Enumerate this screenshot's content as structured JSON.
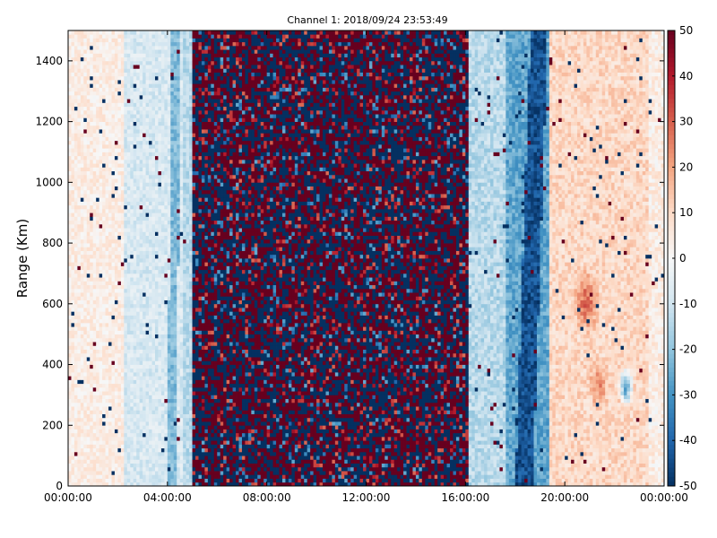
{
  "chart_data": {
    "type": "heatmap",
    "title": "Channel 1: 2018/09/24 23:53:49",
    "xlabel": "",
    "ylabel": "Range (Km)",
    "x_ticks": [
      "00:00:00",
      "04:00:00",
      "08:00:00",
      "12:00:00",
      "16:00:00",
      "20:00:00",
      "00:00:00"
    ],
    "x_range_hours": [
      0,
      24
    ],
    "y_ticks": [
      0,
      200,
      400,
      600,
      800,
      1000,
      1200,
      1400
    ],
    "ylim": [
      0,
      1500
    ],
    "colorbar": {
      "colormap": "RdBu_r",
      "range": [
        -50,
        50
      ],
      "ticks": [
        50,
        40,
        30,
        20,
        10,
        0,
        -10,
        -20,
        -30,
        -40,
        -50
      ],
      "low_color": "#053061",
      "mid_color": "#f7f7f7",
      "high_color": "#67001f"
    },
    "regions": [
      {
        "x_hours": [
          0,
          2.2
        ],
        "character": "near-zero, slightly positive (light pink/white), sparse dark speckles"
      },
      {
        "x_hours": [
          2.2,
          5
        ],
        "character": "slightly negative (light blue), darker blue band near 04:00"
      },
      {
        "x_hours": [
          5,
          16.1
        ],
        "character": "saturated noise alternating +50 / -50 (dark red and dark blue)"
      },
      {
        "x_hours": [
          16.1,
          19.3
        ],
        "character": "negative (blue), strongly negative band near 18:00-19:00"
      },
      {
        "x_hours": [
          19.3,
          24
        ],
        "character": "slightly positive (light red), stronger positive patches near 20:30-22:00 around 300-700 km, negative patch near 22:30 at 300 km"
      }
    ]
  }
}
